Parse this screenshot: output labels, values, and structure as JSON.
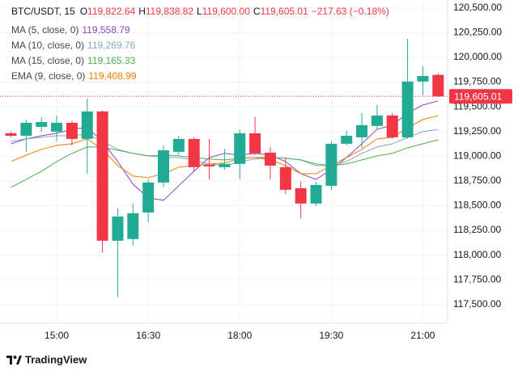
{
  "chart_data": {
    "type": "candlestick",
    "title": "BTC/USDT, 15",
    "ohlc_legend": [
      {
        "key": "O",
        "text": "119,822.64"
      },
      {
        "key": "H",
        "text": "119,838.82"
      },
      {
        "key": "L",
        "text": "119,600.00"
      },
      {
        "key": "C",
        "text": "119,605.01"
      }
    ],
    "change": "−217.63 (−0.18%)",
    "categories": [
      null,
      null,
      null,
      "15:00",
      null,
      null,
      null,
      null,
      null,
      "16:30",
      null,
      null,
      null,
      null,
      null,
      "18:00",
      null,
      null,
      null,
      null,
      null,
      "19:30",
      null,
      null,
      null,
      null,
      null,
      "21:00",
      null
    ],
    "open": [
      119232,
      119207,
      119297,
      119248,
      119338,
      119175,
      119453,
      118145,
      118162,
      118431,
      118734,
      119044,
      119175,
      118913,
      118889,
      118922,
      119232,
      119036,
      118889,
      118676,
      118521,
      118701,
      119126,
      119191,
      119306,
      119412,
      119191,
      119755,
      119822.64
    ],
    "high": [
      119248,
      119371,
      119395,
      119412,
      119355,
      119583,
      119461,
      118472,
      118521,
      118766,
      119109,
      119207,
      119191,
      119175,
      119077,
      119273,
      119395,
      119093,
      118987,
      118742,
      118742,
      119150,
      119257,
      119436,
      119518,
      119436,
      120188,
      119910,
      119838.82
    ],
    "low": [
      119191,
      119044,
      119248,
      119150,
      119110,
      118824,
      118023,
      117574,
      118096,
      118333,
      118685,
      119011,
      118840,
      118766,
      118864,
      118766,
      119011,
      118766,
      118619,
      118374,
      118497,
      118660,
      119110,
      119085,
      119273,
      119175,
      119175,
      119616,
      119600
    ],
    "close": [
      119207,
      119338,
      119346,
      119338,
      119175,
      119453,
      118145,
      118390,
      118423,
      118734,
      119060,
      119175,
      118889,
      118897,
      118922,
      119232,
      119028,
      118905,
      118660,
      118521,
      118709,
      119126,
      119207,
      119314,
      119412,
      119191,
      119755,
      119812,
      119605.01
    ],
    "up_color": "#22ab94",
    "down_color": "#f23645",
    "series": [
      {
        "name": "MA (5, close, 0)",
        "color": "#8e44c4",
        "last_value_label": "119,558.79",
        "values": [
          119126,
          119175,
          119207,
          119232,
          119273,
          119289,
          119150,
          118946,
          118717,
          118578,
          118554,
          118701,
          118848,
          118987,
          119028,
          119011,
          119028,
          119011,
          118946,
          118823,
          118766,
          118864,
          118987,
          119126,
          119273,
          119314,
          119436,
          119518,
          119558.79
        ]
      },
      {
        "name": "MA (10, close, 0)",
        "color": "#7fa8c9",
        "last_value_label": "119,269.76",
        "values": [
          119150,
          119175,
          119191,
          119207,
          119207,
          119224,
          119150,
          119069,
          119028,
          119003,
          118987,
          118987,
          118962,
          118921,
          118905,
          118946,
          118971,
          118987,
          118979,
          118962,
          118905,
          118905,
          118946,
          119028,
          119093,
          119126,
          119191,
          119248,
          119269.76
        ]
      },
      {
        "name": "MA (15, close, 0)",
        "color": "#4caf50",
        "last_value_label": "119,165.33",
        "values": [
          118685,
          118766,
          118848,
          118946,
          119028,
          119093,
          119093,
          119060,
          119028,
          119003,
          119011,
          119003,
          118987,
          118971,
          118962,
          118979,
          118987,
          118987,
          118979,
          118962,
          118921,
          118905,
          118921,
          118962,
          119003,
          119028,
          119085,
          119126,
          119165.33
        ]
      },
      {
        "name": "EMA (9, close, 0)",
        "color": "#f57c00",
        "last_value_label": "119,408.99",
        "values": [
          118946,
          119011,
          119069,
          119109,
          119126,
          119175,
          119069,
          118905,
          118799,
          118783,
          118823,
          118889,
          118905,
          118921,
          118930,
          118979,
          118987,
          118962,
          118905,
          118823,
          118823,
          118905,
          118987,
          119069,
          119175,
          119191,
          119289,
          119371,
          119408.99
        ]
      }
    ],
    "last_price": {
      "value": 119605.01,
      "label": "119,605.01"
    },
    "ylim": [
      117310,
      120580
    ],
    "yticks": [
      {
        "value": 120500,
        "label": "120,500.00"
      },
      {
        "value": 120250,
        "label": "120,250.00"
      },
      {
        "value": 120000,
        "label": "120,000.00"
      },
      {
        "value": 119750,
        "label": "119,750.00"
      },
      {
        "value": 119500,
        "label": "119,500.00"
      },
      {
        "value": 119250,
        "label": "119,250.00"
      },
      {
        "value": 119000,
        "label": "119,000.00"
      },
      {
        "value": 118750,
        "label": "118,750.00"
      },
      {
        "value": 118500,
        "label": "118,500.00"
      },
      {
        "value": 118250,
        "label": "118,250.00"
      },
      {
        "value": 118000,
        "label": "118,000.00"
      },
      {
        "value": 117750,
        "label": "117,750.00"
      },
      {
        "value": 117500,
        "label": "117,500.00"
      }
    ],
    "grid": true
  },
  "footer": {
    "brand": "TradingView"
  }
}
